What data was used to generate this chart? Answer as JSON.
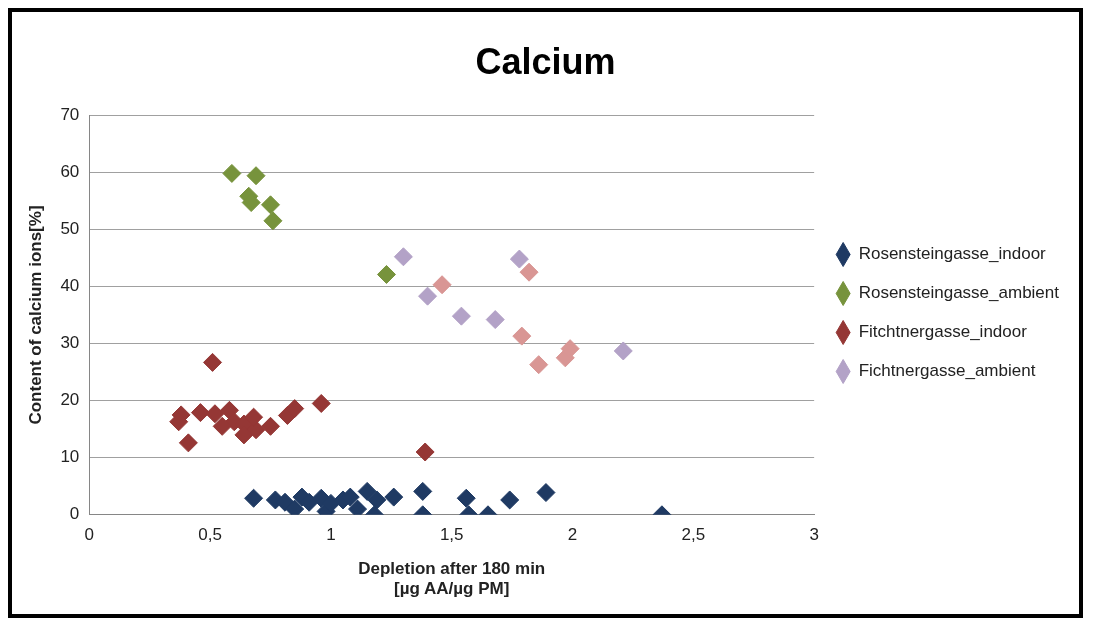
{
  "chart_data": {
    "type": "scatter",
    "title": "Calcium",
    "xlabel": "Depletion after 180 min\n[µg AA/µg PM]",
    "ylabel": "Content of calcium ions[%]",
    "xlim": [
      0,
      3
    ],
    "xticks": [
      0,
      {
        "value": 0.5,
        "label": "0,5"
      },
      1,
      {
        "value": 1.5,
        "label": "1,5"
      },
      2,
      {
        "value": 2.5,
        "label": "2,5"
      },
      3
    ],
    "ylim": [
      0,
      70
    ],
    "yticks": [
      0,
      10,
      20,
      30,
      40,
      50,
      60,
      70
    ],
    "grid": "y",
    "legend": "right",
    "marker": "diamond",
    "series": [
      {
        "name": "Rosensteingasse_indoor",
        "color": "#1f3a63",
        "x": [
          0.68,
          0.77,
          0.81,
          0.85,
          0.88,
          0.91,
          0.96,
          0.98,
          1.0,
          1.05,
          1.08,
          1.11,
          1.15,
          1.19,
          1.18,
          1.26,
          1.38,
          1.38,
          1.56,
          1.57,
          1.65,
          1.74,
          1.89,
          2.37
        ],
        "values": [
          2.9,
          2.6,
          2.2,
          1.0,
          3.1,
          2.2,
          2.9,
          0.6,
          2.0,
          2.6,
          3.1,
          1.0,
          4.1,
          2.6,
          0,
          3.1,
          4.1,
          0,
          2.9,
          0,
          0,
          2.6,
          3.9,
          0
        ]
      },
      {
        "name": "Rosensteingasse_ambient",
        "color": "#77933c",
        "x": [
          0.59,
          0.69,
          0.66,
          0.67,
          0.75,
          0.76,
          1.23
        ],
        "values": [
          59.8,
          59.4,
          55.8,
          54.7,
          54.3,
          51.5,
          42.1
        ]
      },
      {
        "name": "Fitchtnergasse_indoor",
        "color": "#953735",
        "x": [
          0.51,
          0.96,
          1.39,
          0.41,
          0.38,
          0.37,
          0.46,
          0.52,
          0.58,
          0.6,
          0.55,
          0.64,
          0.64,
          0.69,
          0.68,
          0.75,
          0.82,
          0.85
        ],
        "values": [
          26.7,
          19.5,
          11.0,
          12.6,
          17.5,
          16.3,
          17.9,
          17.7,
          18.3,
          16.3,
          15.5,
          15.9,
          14.0,
          14.9,
          17.1,
          15.5,
          17.4,
          18.6
        ]
      },
      {
        "name": "Fichtnergasse_ambient",
        "color": "#b3a2c7",
        "x": [
          1.3,
          1.4,
          1.54,
          1.68,
          1.78,
          2.21
        ],
        "values": [
          45.2,
          38.3,
          34.8,
          34.2,
          44.8,
          28.7
        ]
      },
      {
        "color": "#d99694",
        "x": [
          1.46,
          1.82,
          1.79,
          1.86,
          1.97,
          1.99
        ],
        "values": [
          40.3,
          42.5,
          31.3,
          26.3,
          27.5,
          29.1
        ]
      }
    ]
  }
}
